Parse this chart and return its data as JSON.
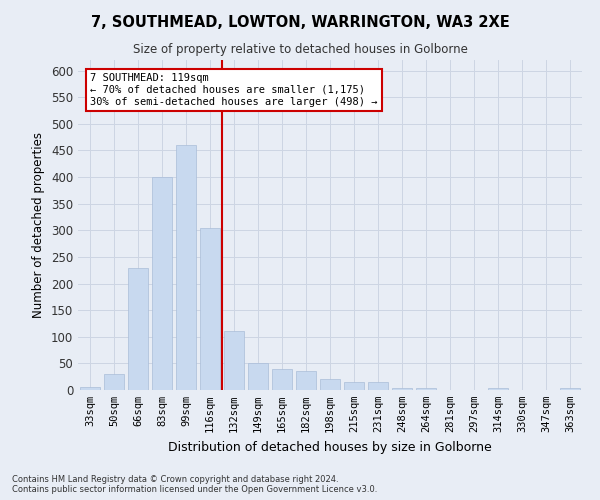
{
  "title": "7, SOUTHMEAD, LOWTON, WARRINGTON, WA3 2XE",
  "subtitle": "Size of property relative to detached houses in Golborne",
  "xlabel": "Distribution of detached houses by size in Golborne",
  "ylabel": "Number of detached properties",
  "categories": [
    "33sqm",
    "50sqm",
    "66sqm",
    "83sqm",
    "99sqm",
    "116sqm",
    "132sqm",
    "149sqm",
    "165sqm",
    "182sqm",
    "198sqm",
    "215sqm",
    "231sqm",
    "248sqm",
    "264sqm",
    "281sqm",
    "297sqm",
    "314sqm",
    "330sqm",
    "347sqm",
    "363sqm"
  ],
  "values": [
    5,
    30,
    230,
    400,
    460,
    305,
    110,
    50,
    40,
    35,
    20,
    15,
    15,
    3,
    3,
    0,
    0,
    3,
    0,
    0,
    3
  ],
  "bar_color": "#c8d9ef",
  "bar_edge_color": "#aabdd8",
  "vline_color": "#cc0000",
  "annotation_text": "7 SOUTHMEAD: 119sqm\n← 70% of detached houses are smaller (1,175)\n30% of semi-detached houses are larger (498) →",
  "annotation_box_color": "#ffffff",
  "annotation_box_edge": "#cc0000",
  "grid_color": "#cdd5e3",
  "bg_color": "#e8edf5",
  "footer1": "Contains HM Land Registry data © Crown copyright and database right 2024.",
  "footer2": "Contains public sector information licensed under the Open Government Licence v3.0.",
  "ylim": [
    0,
    620
  ],
  "yticks": [
    0,
    50,
    100,
    150,
    200,
    250,
    300,
    350,
    400,
    450,
    500,
    550,
    600
  ]
}
